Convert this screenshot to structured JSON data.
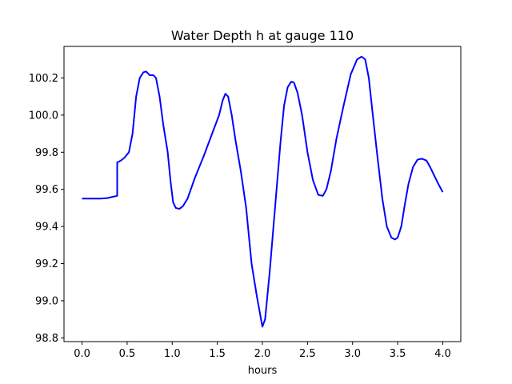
{
  "chart_data": {
    "type": "line",
    "title": "Water Depth h at gauge 110",
    "xlabel": "hours",
    "ylabel": "",
    "xlim": [
      -0.2,
      4.2
    ],
    "ylim": [
      98.78,
      100.37
    ],
    "x_ticks": [
      0.0,
      0.5,
      1.0,
      1.5,
      2.0,
      2.5,
      3.0,
      3.5,
      4.0
    ],
    "x_tick_labels": [
      "0.0",
      "0.5",
      "1.0",
      "1.5",
      "2.0",
      "2.5",
      "3.0",
      "3.5",
      "4.0"
    ],
    "y_ticks": [
      98.8,
      99.0,
      99.2,
      99.4,
      99.6,
      99.8,
      100.0,
      100.2
    ],
    "y_tick_labels": [
      "98.8",
      "99.0",
      "99.2",
      "99.4",
      "99.6",
      "99.8",
      "100.0",
      "100.2"
    ],
    "grid": false,
    "series": [
      {
        "color": "#0000ff",
        "x": [
          0.0,
          0.1,
          0.2,
          0.28,
          0.34,
          0.39,
          0.39,
          0.43,
          0.47,
          0.52,
          0.56,
          0.6,
          0.64,
          0.68,
          0.71,
          0.75,
          0.79,
          0.82,
          0.86,
          0.9,
          0.95,
          0.98,
          1.01,
          1.04,
          1.08,
          1.12,
          1.17,
          1.25,
          1.35,
          1.45,
          1.52,
          1.56,
          1.59,
          1.62,
          1.66,
          1.7,
          1.76,
          1.82,
          1.88,
          1.94,
          2.0,
          2.03,
          2.08,
          2.14,
          2.2,
          2.24,
          2.28,
          2.32,
          2.35,
          2.39,
          2.44,
          2.5,
          2.56,
          2.62,
          2.67,
          2.71,
          2.76,
          2.82,
          2.9,
          2.98,
          3.05,
          3.1,
          3.14,
          3.18,
          3.22,
          3.27,
          3.33,
          3.38,
          3.43,
          3.47,
          3.5,
          3.54,
          3.58,
          3.62,
          3.67,
          3.72,
          3.77,
          3.82,
          3.86,
          3.9,
          3.95,
          4.0
        ],
        "y": [
          99.55,
          99.55,
          99.55,
          99.553,
          99.56,
          99.565,
          99.745,
          99.755,
          99.77,
          99.8,
          99.9,
          100.1,
          100.2,
          100.23,
          100.235,
          100.215,
          100.215,
          100.2,
          100.1,
          99.95,
          99.8,
          99.65,
          99.53,
          99.5,
          99.495,
          99.51,
          99.55,
          99.66,
          99.78,
          99.91,
          100.0,
          100.08,
          100.115,
          100.1,
          100.0,
          99.87,
          99.7,
          99.5,
          99.2,
          99.02,
          98.86,
          98.9,
          99.15,
          99.5,
          99.85,
          100.05,
          100.15,
          100.18,
          100.175,
          100.12,
          100.0,
          99.8,
          99.65,
          99.57,
          99.565,
          99.6,
          99.7,
          99.87,
          100.05,
          100.22,
          100.3,
          100.315,
          100.3,
          100.2,
          100.02,
          99.8,
          99.55,
          99.4,
          99.34,
          99.33,
          99.34,
          99.4,
          99.52,
          99.63,
          99.72,
          99.76,
          99.765,
          99.755,
          99.72,
          99.68,
          99.63,
          99.585
        ]
      }
    ]
  }
}
